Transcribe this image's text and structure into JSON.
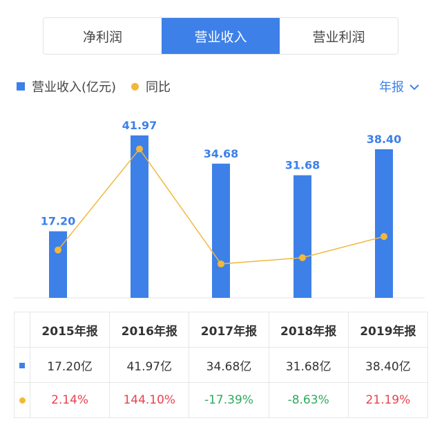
{
  "tabs": [
    {
      "label": "净利润",
      "active": false
    },
    {
      "label": "营业收入",
      "active": true
    },
    {
      "label": "营业利润",
      "active": false
    }
  ],
  "legend": {
    "bar_label": "营业收入(亿元)",
    "line_label": "同比"
  },
  "period_selector": {
    "label": "年报",
    "icon": "chevron-down-icon"
  },
  "colors": {
    "accent": "#3d80e8",
    "line": "#f1b83c",
    "positive": "#e8424e",
    "negative": "#2daa5c"
  },
  "chart_data": {
    "type": "bar",
    "categories": [
      "2015年报",
      "2016年报",
      "2017年报",
      "2018年报",
      "2019年报"
    ],
    "series": [
      {
        "name": "营业收入(亿元)",
        "type": "bar",
        "values": [
          17.2,
          41.97,
          34.68,
          31.68,
          38.4
        ],
        "labels": [
          "17.20",
          "41.97",
          "34.68",
          "31.68",
          "38.40"
        ]
      },
      {
        "name": "同比",
        "type": "line",
        "values": [
          2.14,
          144.1,
          -17.39,
          -8.63,
          21.19
        ]
      }
    ],
    "legend_position": "top-left",
    "grid": false
  },
  "table": {
    "headers": [
      "2015年报",
      "2016年报",
      "2017年报",
      "2018年报",
      "2019年报"
    ],
    "revenue": [
      "17.20亿",
      "41.97亿",
      "34.68亿",
      "31.68亿",
      "38.40亿"
    ],
    "yoy": [
      "2.14%",
      "144.10%",
      "-17.39%",
      "-8.63%",
      "21.19%"
    ]
  }
}
